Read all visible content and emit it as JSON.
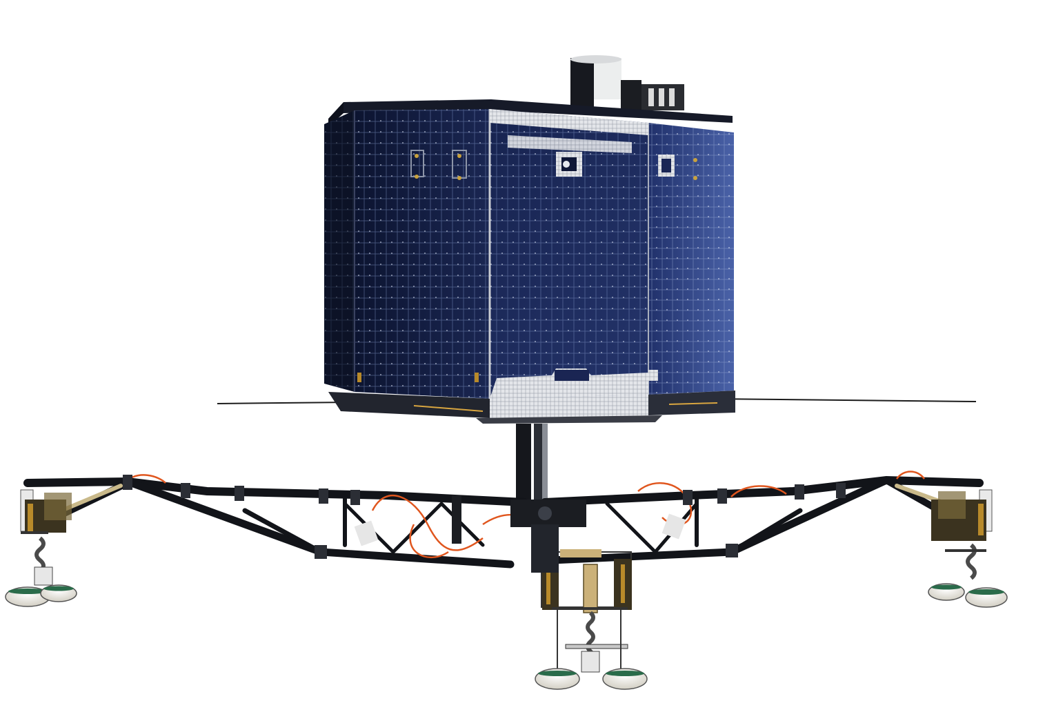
{
  "scene": {
    "subject": "lander-render",
    "background_color": "#ffffff",
    "colors": {
      "panel_dark": "#101a3c",
      "panel_mid": "#1f2d5e",
      "panel_light": "#3b4f8f",
      "cell_line": "#8ea0c8",
      "frame": "#c9ccd3",
      "strut": "#14161c",
      "cable": "#e0561e",
      "gold": "#b88a2a",
      "foot": "#f1efe6"
    }
  }
}
